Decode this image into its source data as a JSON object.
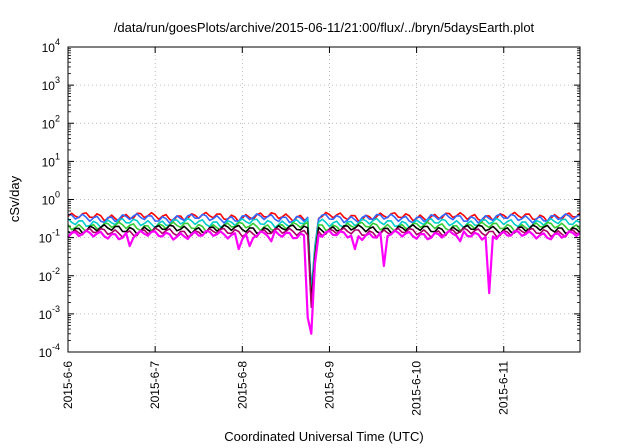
{
  "chart_data": {
    "type": "line",
    "title": "/data/run/goesPlots/archive/2015-06-11/21:00/flux/../bryn/5daysEarth.plot",
    "xlabel": "Coordinated Universal Time (UTC)",
    "ylabel": "cSv/day",
    "yscale": "log",
    "ylim": [
      0.0001,
      10000
    ],
    "xlim": [
      "2015-06-06 00:00",
      "2015-06-11 21:00"
    ],
    "grid": true,
    "x_ticks": [
      "2015-6-6",
      "2015-6-7",
      "2015-6-8",
      "2015-6-9",
      "2015-6-10",
      "2015-6-11"
    ],
    "y_ticks": [
      {
        "value": 0.0001,
        "base": "10",
        "exp": "-4"
      },
      {
        "value": 0.001,
        "base": "10",
        "exp": "-3"
      },
      {
        "value": 0.01,
        "base": "10",
        "exp": "-2"
      },
      {
        "value": 0.1,
        "base": "10",
        "exp": "-1"
      },
      {
        "value": 1,
        "base": "10",
        "exp": "0"
      },
      {
        "value": 10,
        "base": "10",
        "exp": "1"
      },
      {
        "value": 100,
        "base": "10",
        "exp": "2"
      },
      {
        "value": 1000,
        "base": "10",
        "exp": "3"
      },
      {
        "value": 10000,
        "base": "10",
        "exp": "4"
      }
    ],
    "series": [
      {
        "color": "#ff0000",
        "base": 0.36,
        "dips": [
          [
            "2015-06-08 19:00",
            0.003
          ],
          [
            "2015-06-08 20:00",
            0.05
          ]
        ]
      },
      {
        "color": "#3366ff",
        "base": 0.33,
        "dips": [
          [
            "2015-06-08 19:00",
            0.004
          ],
          [
            "2015-06-08 20:00",
            0.06
          ]
        ]
      },
      {
        "color": "#00cccc",
        "base": 0.25,
        "dips": [
          [
            "2015-06-08 19:00",
            0.003
          ],
          [
            "2015-06-08 20:00",
            0.05
          ]
        ]
      },
      {
        "color": "#33cc33",
        "base": 0.2,
        "dips": [
          [
            "2015-06-08 19:00",
            0.002
          ],
          [
            "2015-06-08 20:00",
            0.04
          ]
        ]
      },
      {
        "color": "#000000",
        "base": 0.17,
        "dips": [
          [
            "2015-06-08 19:00",
            0.002
          ],
          [
            "2015-06-08 20:00",
            0.03
          ]
        ]
      },
      {
        "color": "#aa0066",
        "base": 0.14,
        "dips": [
          [
            "2015-06-08 19:00",
            0.0015
          ],
          [
            "2015-06-08 20:00",
            0.025
          ]
        ]
      },
      {
        "color": "#ff00ff",
        "base": 0.12,
        "dips": [
          [
            "2015-06-06 17:00",
            0.06
          ],
          [
            "2015-06-07 23:00",
            0.05
          ],
          [
            "2015-06-08 02:00",
            0.06
          ],
          [
            "2015-06-08 08:00",
            0.08
          ],
          [
            "2015-06-08 18:00",
            0.0008
          ],
          [
            "2015-06-08 19:00",
            0.0003
          ],
          [
            "2015-06-08 20:00",
            0.02
          ],
          [
            "2015-06-09 07:00",
            0.05
          ],
          [
            "2015-06-09 15:00",
            0.018
          ],
          [
            "2015-06-10 12:00",
            0.08
          ],
          [
            "2015-06-10 20:00",
            0.0035
          ]
        ]
      }
    ]
  }
}
